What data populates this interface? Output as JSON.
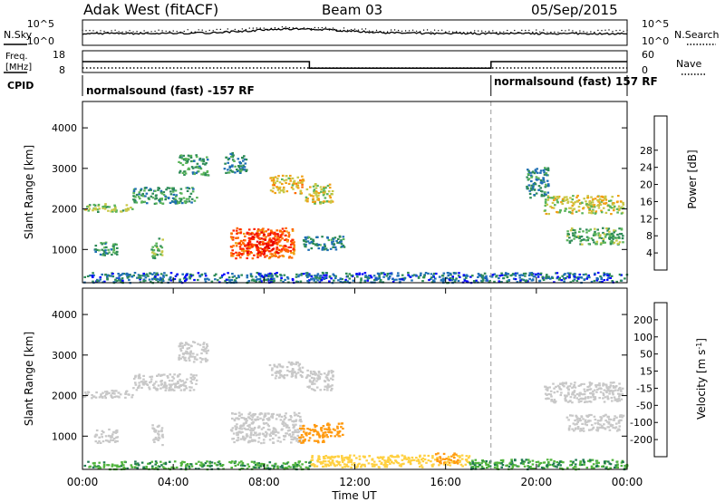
{
  "header": {
    "station": "Adak West (fitACF)",
    "beam": "Beam 03",
    "date": "05/Sep/2015"
  },
  "noise_panel": {
    "left_label": "N.Sky",
    "right_label": "N.Search",
    "left_ticks": [
      "10^5",
      "10^0"
    ],
    "right_ticks": [
      "10^5",
      "10^0"
    ]
  },
  "freq_panel": {
    "left_label_1": "Freq.",
    "left_label_2": "[MHz]",
    "right_label": "Nave",
    "left_ticks": [
      "18",
      "8"
    ],
    "right_ticks": [
      "60",
      "0"
    ],
    "freq_segments": [
      {
        "start": 0.0,
        "end": 10.0,
        "value": 13
      },
      {
        "start": 10.0,
        "end": 18.0,
        "value": 10
      },
      {
        "start": 18.0,
        "end": 24.0,
        "value": 13
      }
    ]
  },
  "cpid_panel": {
    "label": "CPID",
    "entries": [
      "normalsound (fast) -157 RF",
      "normalsound (fast) 157 RF"
    ],
    "switch_time": 18.0
  },
  "colors": {
    "power_scale": [
      "#0000ff",
      "#1e6eb4",
      "#2e8b57",
      "#5ab45a",
      "#c8c846",
      "#f0a014",
      "#ff6a00",
      "#ff2600",
      "#e60000"
    ],
    "velocity_scale": [
      "#1f1fb0",
      "#2f4fb8",
      "#1f7a50",
      "#50b43c",
      "#c8c8c8",
      "#ffd040",
      "#ff9a10",
      "#ff5a00",
      "#ff0000"
    ]
  },
  "chart_data": [
    {
      "type": "heatmap",
      "panel": "power",
      "ylabel": "Slant Range [km]",
      "xlim": [
        0,
        24
      ],
      "ylim": [
        180,
        4650
      ],
      "yticks": [
        "1000",
        "2000",
        "3000",
        "4000"
      ],
      "colorbar_label": "Power [dB]",
      "colorbar_ticks": [
        "4",
        "8",
        "12",
        "16",
        "20",
        "24",
        "28"
      ],
      "regions": [
        {
          "t0": 0.0,
          "t1": 2.2,
          "r0": 1950,
          "r1": 2150,
          "level": 14
        },
        {
          "t0": 2.2,
          "t1": 5.0,
          "r0": 2150,
          "r1": 2550,
          "level": 10
        },
        {
          "t0": 0.5,
          "t1": 1.5,
          "r0": 850,
          "r1": 1200,
          "level": 10
        },
        {
          "t0": 3.0,
          "t1": 3.5,
          "r0": 800,
          "r1": 1300,
          "level": 12
        },
        {
          "t0": 4.2,
          "t1": 5.5,
          "r0": 2850,
          "r1": 3350,
          "level": 10
        },
        {
          "t0": 6.2,
          "t1": 7.2,
          "r0": 2900,
          "r1": 3400,
          "level": 8
        },
        {
          "t0": 6.5,
          "t1": 9.3,
          "r0": 800,
          "r1": 1550,
          "level": 24
        },
        {
          "t0": 7.2,
          "t1": 8.6,
          "r0": 900,
          "r1": 1450,
          "level": 28
        },
        {
          "t0": 8.2,
          "t1": 9.7,
          "r0": 2400,
          "r1": 2850,
          "level": 18
        },
        {
          "t0": 9.7,
          "t1": 11.5,
          "r0": 1000,
          "r1": 1350,
          "level": 8
        },
        {
          "t0": 9.8,
          "t1": 11.0,
          "r0": 2150,
          "r1": 2650,
          "level": 16
        },
        {
          "t0": 19.5,
          "t1": 20.5,
          "r0": 2300,
          "r1": 3050,
          "level": 8
        },
        {
          "t0": 20.3,
          "t1": 23.8,
          "r0": 1900,
          "r1": 2350,
          "level": 16
        },
        {
          "t0": 21.3,
          "t1": 23.8,
          "r0": 1150,
          "r1": 1550,
          "level": 12
        },
        {
          "t0": 0.0,
          "t1": 24.0,
          "r0": 200,
          "r1": 450,
          "level": 6
        }
      ]
    },
    {
      "type": "heatmap",
      "panel": "velocity",
      "ylabel": "Slant Range [km]",
      "xlabel": "Time UT",
      "xlim": [
        0,
        24
      ],
      "ylim": [
        180,
        4650
      ],
      "xticks": [
        "00:00",
        "04:00",
        "08:00",
        "12:00",
        "16:00",
        "20:00",
        "00:00"
      ],
      "yticks": [
        "1000",
        "2000",
        "3000",
        "4000"
      ],
      "colorbar_label": "Velocity [m s^-1]",
      "colorbar_ticks": [
        "200",
        "100",
        "50",
        "15",
        "-15",
        "-50",
        "-100",
        "-200"
      ],
      "regions": [
        {
          "t0": 0.0,
          "t1": 2.2,
          "r0": 1950,
          "r1": 2150,
          "v": 0
        },
        {
          "t0": 2.2,
          "t1": 5.0,
          "r0": 2150,
          "r1": 2550,
          "v": 0
        },
        {
          "t0": 0.5,
          "t1": 1.5,
          "r0": 850,
          "r1": 1200,
          "v": 0
        },
        {
          "t0": 3.0,
          "t1": 3.5,
          "r0": 800,
          "r1": 1300,
          "v": 0
        },
        {
          "t0": 4.2,
          "t1": 5.5,
          "r0": 2850,
          "r1": 3350,
          "v": 0
        },
        {
          "t0": 6.5,
          "t1": 9.6,
          "r0": 850,
          "r1": 1600,
          "v": 0
        },
        {
          "t0": 9.5,
          "t1": 10.6,
          "r0": 850,
          "r1": 1300,
          "v": -60
        },
        {
          "t0": 10.5,
          "t1": 11.5,
          "r0": 1000,
          "r1": 1350,
          "v": -80
        },
        {
          "t0": 9.8,
          "t1": 11.0,
          "r0": 2150,
          "r1": 2650,
          "v": 0
        },
        {
          "t0": 8.2,
          "t1": 9.7,
          "r0": 2450,
          "r1": 2850,
          "v": 0
        },
        {
          "t0": 20.3,
          "t1": 23.8,
          "r0": 1850,
          "r1": 2350,
          "v": 0
        },
        {
          "t0": 21.3,
          "t1": 23.8,
          "r0": 1150,
          "r1": 1550,
          "v": 0
        },
        {
          "t0": 10.0,
          "t1": 17.0,
          "r0": 250,
          "r1": 550,
          "v": -40
        },
        {
          "t0": 15.5,
          "t1": 16.5,
          "r0": 350,
          "r1": 600,
          "v": -90
        },
        {
          "t0": 0.0,
          "t1": 10.0,
          "r0": 200,
          "r1": 400,
          "v": 30
        },
        {
          "t0": 17.0,
          "t1": 24.0,
          "r0": 200,
          "r1": 450,
          "v": 30
        }
      ]
    }
  ]
}
